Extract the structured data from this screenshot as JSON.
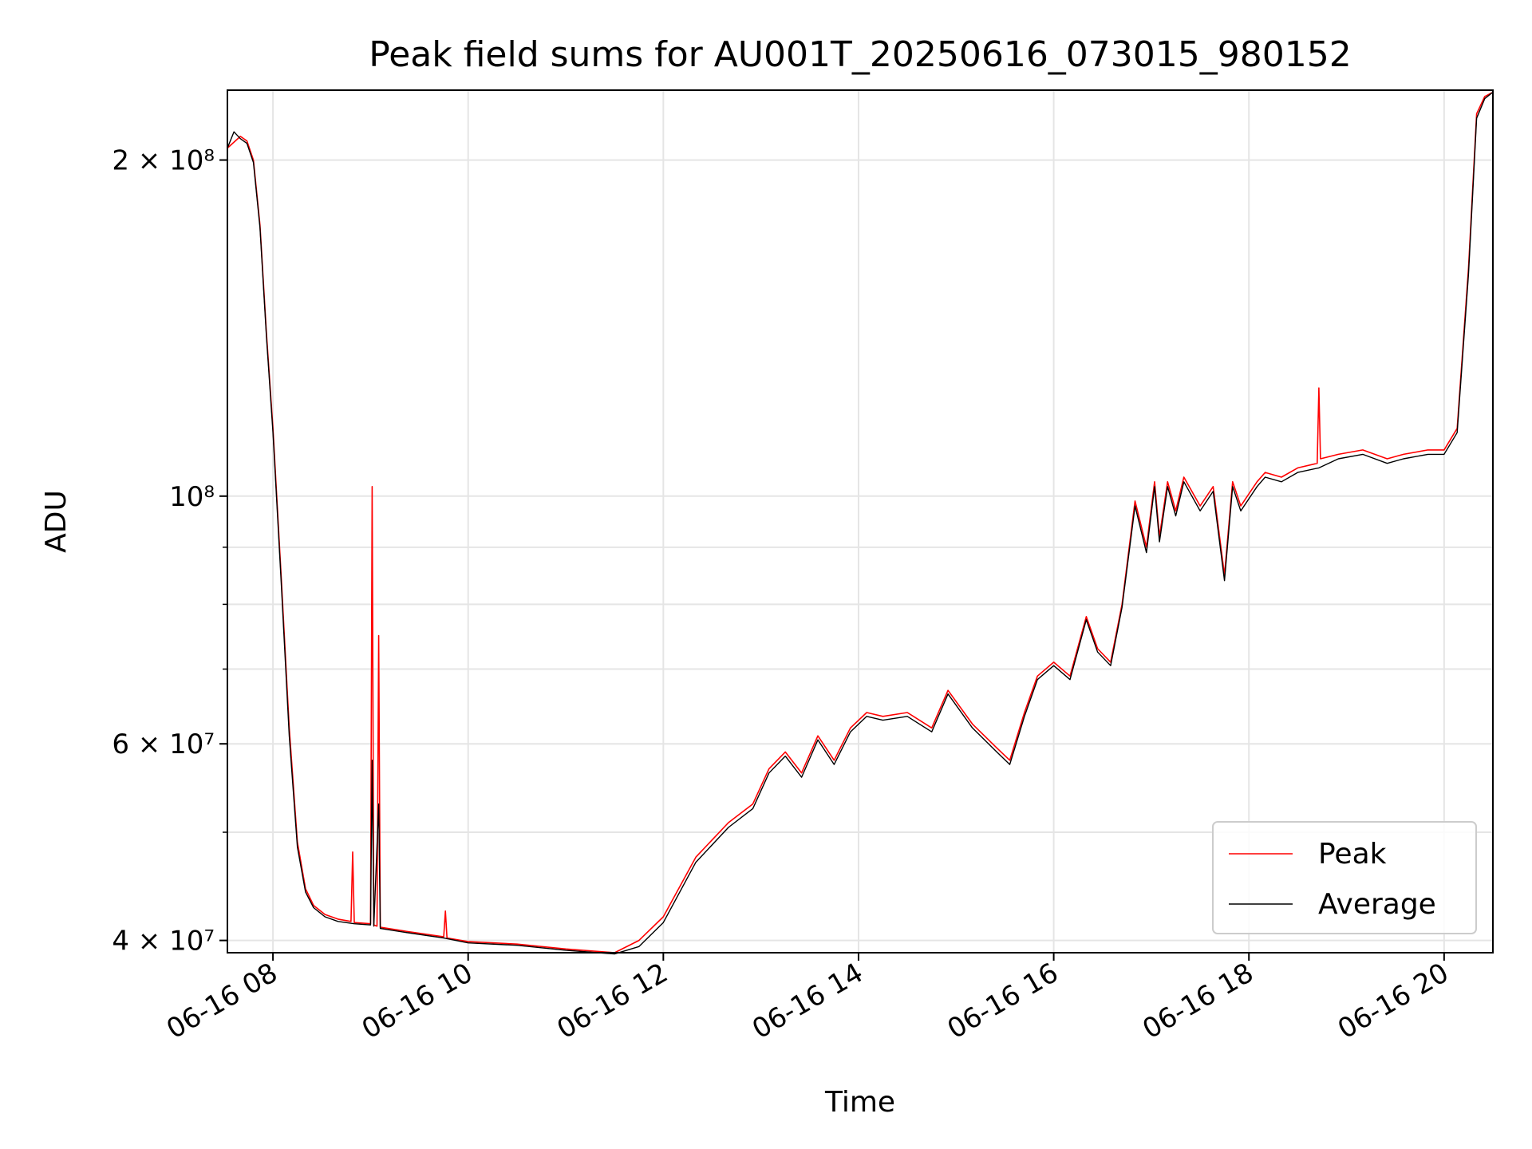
{
  "chart_data": {
    "type": "line",
    "title": "Peak field sums for AU001T_20250616_073015_980152",
    "xlabel": "Time",
    "ylabel": "ADU",
    "xlim": [
      "2025-06-16 07:32",
      "2025-06-16 20:30"
    ],
    "ylim": [
      39000000,
      231000000
    ],
    "yscale": "log",
    "grid": true,
    "legend": "lower right",
    "x_ticks": [
      "06-16 08",
      "06-16 10",
      "06-16 12",
      "06-16 14",
      "06-16 16",
      "06-16 18",
      "06-16 20"
    ],
    "y_ticks": [
      {
        "value": 40000000,
        "label": "4 × 10⁷"
      },
      {
        "value": 60000000,
        "label": "6 × 10⁷"
      },
      {
        "value": 100000000,
        "label": "10⁸"
      },
      {
        "value": 200000000,
        "label": "2 × 10⁸"
      }
    ],
    "series": [
      {
        "name": "Peak",
        "color": "#ff0000",
        "x": [
          "2025-06-16 07:32",
          "2025-06-16 07:40",
          "2025-06-16 07:44",
          "2025-06-16 07:48",
          "2025-06-16 07:52",
          "2025-06-16 07:56",
          "2025-06-16 08:00",
          "2025-06-16 08:05",
          "2025-06-16 08:10",
          "2025-06-16 08:15",
          "2025-06-16 08:20",
          "2025-06-16 08:25",
          "2025-06-16 08:32",
          "2025-06-16 08:40",
          "2025-06-16 08:48",
          "2025-06-16 08:49",
          "2025-06-16 08:50",
          "2025-06-16 09:00",
          "2025-06-16 09:01",
          "2025-06-16 09:02",
          "2025-06-16 09:04",
          "2025-06-16 09:05",
          "2025-06-16 09:06",
          "2025-06-16 09:20",
          "2025-06-16 09:45",
          "2025-06-16 09:46",
          "2025-06-16 09:47",
          "2025-06-16 10:00",
          "2025-06-16 10:30",
          "2025-06-16 11:00",
          "2025-06-16 11:20",
          "2025-06-16 11:30",
          "2025-06-16 11:45",
          "2025-06-16 12:00",
          "2025-06-16 12:20",
          "2025-06-16 12:40",
          "2025-06-16 12:55",
          "2025-06-16 13:05",
          "2025-06-16 13:15",
          "2025-06-16 13:25",
          "2025-06-16 13:35",
          "2025-06-16 13:45",
          "2025-06-16 13:55",
          "2025-06-16 14:05",
          "2025-06-16 14:15",
          "2025-06-16 14:30",
          "2025-06-16 14:45",
          "2025-06-16 14:55",
          "2025-06-16 15:10",
          "2025-06-16 15:25",
          "2025-06-16 15:33",
          "2025-06-16 15:42",
          "2025-06-16 15:50",
          "2025-06-16 16:00",
          "2025-06-16 16:10",
          "2025-06-16 16:20",
          "2025-06-16 16:27",
          "2025-06-16 16:35",
          "2025-06-16 16:42",
          "2025-06-16 16:50",
          "2025-06-16 16:57",
          "2025-06-16 17:02",
          "2025-06-16 17:05",
          "2025-06-16 17:10",
          "2025-06-16 17:15",
          "2025-06-16 17:20",
          "2025-06-16 17:30",
          "2025-06-16 17:38",
          "2025-06-16 17:45",
          "2025-06-16 17:50",
          "2025-06-16 17:55",
          "2025-06-16 18:05",
          "2025-06-16 18:10",
          "2025-06-16 18:20",
          "2025-06-16 18:30",
          "2025-06-16 18:42",
          "2025-06-16 18:43",
          "2025-06-16 18:44",
          "2025-06-16 18:55",
          "2025-06-16 19:10",
          "2025-06-16 19:25",
          "2025-06-16 19:35",
          "2025-06-16 19:50",
          "2025-06-16 20:00",
          "2025-06-16 20:08",
          "2025-06-16 20:15",
          "2025-06-16 20:20",
          "2025-06-16 20:25",
          "2025-06-16 20:30"
        ],
        "values": [
          205000000,
          210000000,
          208000000,
          200000000,
          175000000,
          140000000,
          115000000,
          85000000,
          62000000,
          49000000,
          44500000,
          43000000,
          42200000,
          41800000,
          41600000,
          48000000,
          41500000,
          41400000,
          102000000,
          41300000,
          41200000,
          75000000,
          41100000,
          40800000,
          40300000,
          42500000,
          40200000,
          39900000,
          39700000,
          39300000,
          39100000,
          39000000,
          40000000,
          42000000,
          47500000,
          51000000,
          53000000,
          57000000,
          59000000,
          56500000,
          61000000,
          58000000,
          62000000,
          64000000,
          63500000,
          64000000,
          62000000,
          67000000,
          62500000,
          59500000,
          58000000,
          64000000,
          69000000,
          71000000,
          69000000,
          78000000,
          73000000,
          71000000,
          80000000,
          99000000,
          90000000,
          103000000,
          92000000,
          103000000,
          97000000,
          104000000,
          98000000,
          102000000,
          85000000,
          103000000,
          98000000,
          103000000,
          105000000,
          104000000,
          106000000,
          107000000,
          125000000,
          108000000,
          109000000,
          110000000,
          108000000,
          109000000,
          110000000,
          110000000,
          115000000,
          160000000,
          220000000,
          228000000,
          230000000
        ]
      },
      {
        "name": "Average",
        "color": "#000000",
        "x": [
          "2025-06-16 07:32",
          "2025-06-16 07:36",
          "2025-06-16 07:40",
          "2025-06-16 07:44",
          "2025-06-16 07:48",
          "2025-06-16 07:52",
          "2025-06-16 07:56",
          "2025-06-16 08:00",
          "2025-06-16 08:05",
          "2025-06-16 08:10",
          "2025-06-16 08:15",
          "2025-06-16 08:20",
          "2025-06-16 08:25",
          "2025-06-16 08:32",
          "2025-06-16 08:40",
          "2025-06-16 08:50",
          "2025-06-16 09:00",
          "2025-06-16 09:01",
          "2025-06-16 09:02",
          "2025-06-16 09:05",
          "2025-06-16 09:06",
          "2025-06-16 09:20",
          "2025-06-16 09:45",
          "2025-06-16 10:00",
          "2025-06-16 10:30",
          "2025-06-16 11:00",
          "2025-06-16 11:20",
          "2025-06-16 11:30",
          "2025-06-16 11:45",
          "2025-06-16 12:00",
          "2025-06-16 12:20",
          "2025-06-16 12:40",
          "2025-06-16 12:55",
          "2025-06-16 13:05",
          "2025-06-16 13:15",
          "2025-06-16 13:25",
          "2025-06-16 13:35",
          "2025-06-16 13:45",
          "2025-06-16 13:55",
          "2025-06-16 14:05",
          "2025-06-16 14:15",
          "2025-06-16 14:30",
          "2025-06-16 14:45",
          "2025-06-16 14:55",
          "2025-06-16 15:10",
          "2025-06-16 15:25",
          "2025-06-16 15:33",
          "2025-06-16 15:42",
          "2025-06-16 15:50",
          "2025-06-16 16:00",
          "2025-06-16 16:10",
          "2025-06-16 16:20",
          "2025-06-16 16:27",
          "2025-06-16 16:35",
          "2025-06-16 16:42",
          "2025-06-16 16:50",
          "2025-06-16 16:57",
          "2025-06-16 17:02",
          "2025-06-16 17:05",
          "2025-06-16 17:10",
          "2025-06-16 17:15",
          "2025-06-16 17:20",
          "2025-06-16 17:30",
          "2025-06-16 17:38",
          "2025-06-16 17:45",
          "2025-06-16 17:50",
          "2025-06-16 17:55",
          "2025-06-16 18:05",
          "2025-06-16 18:10",
          "2025-06-16 18:20",
          "2025-06-16 18:30",
          "2025-06-16 18:43",
          "2025-06-16 18:55",
          "2025-06-16 19:10",
          "2025-06-16 19:25",
          "2025-06-16 19:35",
          "2025-06-16 19:50",
          "2025-06-16 20:00",
          "2025-06-16 20:08",
          "2025-06-16 20:15",
          "2025-06-16 20:20",
          "2025-06-16 20:25",
          "2025-06-16 20:30"
        ],
        "values": [
          205000000,
          212000000,
          209000000,
          207000000,
          199000000,
          174000000,
          139000000,
          114000000,
          84000000,
          61000000,
          48500000,
          44200000,
          42800000,
          42000000,
          41600000,
          41400000,
          41300000,
          58000000,
          41200000,
          53000000,
          41000000,
          40700000,
          40200000,
          39800000,
          39600000,
          39200000,
          39000000,
          38900000,
          39500000,
          41500000,
          47000000,
          50500000,
          52500000,
          56500000,
          58500000,
          56000000,
          60500000,
          57500000,
          61500000,
          63500000,
          63000000,
          63500000,
          61500000,
          66500000,
          62000000,
          59000000,
          57500000,
          63500000,
          68500000,
          70500000,
          68500000,
          77500000,
          72500000,
          70500000,
          79500000,
          98000000,
          89000000,
          102000000,
          91000000,
          102000000,
          96000000,
          103000000,
          97000000,
          101000000,
          84000000,
          102000000,
          97000000,
          102000000,
          104000000,
          103000000,
          105000000,
          106000000,
          108000000,
          109000000,
          107000000,
          108000000,
          109000000,
          109000000,
          114000000,
          158000000,
          218000000,
          227000000,
          230000000
        ]
      }
    ]
  }
}
